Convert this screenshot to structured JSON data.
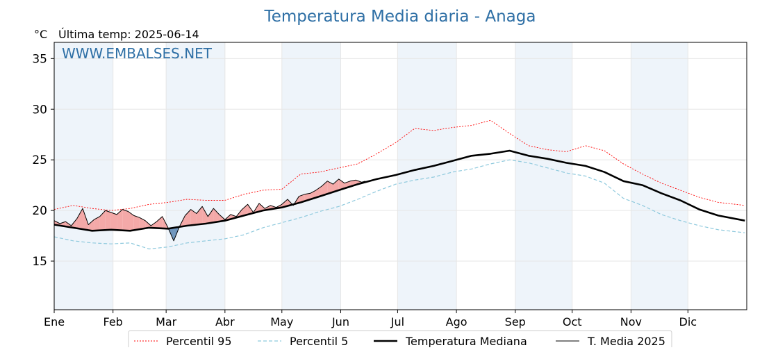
{
  "chart_data": {
    "type": "line",
    "title": "Temperatura Media diaria - Anaga",
    "unit_label": "°C",
    "last_temp_label": "Última temp: 2025-06-14",
    "watermark": "WWW.EMBALSES.NET",
    "xlabel": "",
    "ylabel": "",
    "ylim": [
      10.2,
      36.6
    ],
    "y_ticks": [
      15,
      20,
      25,
      30,
      35
    ],
    "x_range_days": [
      0,
      365
    ],
    "month_ticks": [
      {
        "label": "Ene",
        "day": 0
      },
      {
        "label": "Feb",
        "day": 31
      },
      {
        "label": "Mar",
        "day": 59
      },
      {
        "label": "Abr",
        "day": 90
      },
      {
        "label": "May",
        "day": 120
      },
      {
        "label": "Jun",
        "day": 151
      },
      {
        "label": "Jul",
        "day": 181
      },
      {
        "label": "Ago",
        "day": 212
      },
      {
        "label": "Sep",
        "day": 243
      },
      {
        "label": "Oct",
        "day": 273
      },
      {
        "label": "Nov",
        "day": 304
      },
      {
        "label": "Dic",
        "day": 334
      }
    ],
    "shaded_months": [
      "Ene",
      "Mar",
      "May",
      "Jul",
      "Sep",
      "Nov"
    ],
    "grid": true,
    "legend_position": "bottom-center",
    "colors": {
      "title": "#2e6fa5",
      "watermark": "#2e6fa5",
      "p95": "#ff0000",
      "p5": "#8ec9dd",
      "median": "#000000",
      "current": "#000000",
      "above_fill": "#f4a9a8",
      "below_fill": "#6f96bd",
      "band_fill": "#eef4fa"
    },
    "series": [
      {
        "name": "Percentil 95",
        "key": "p95",
        "style": "dotted-red",
        "x": [
          0,
          10,
          20,
          30,
          40,
          50,
          60,
          70,
          80,
          90,
          100,
          110,
          120,
          130,
          140,
          150,
          160,
          170,
          180,
          190,
          200,
          210,
          220,
          230,
          240,
          250,
          260,
          270,
          280,
          290,
          300,
          310,
          320,
          330,
          340,
          350,
          364
        ],
        "values": [
          20.1,
          20.5,
          20.2,
          20.0,
          20.2,
          20.6,
          20.8,
          21.1,
          21.0,
          21.0,
          21.6,
          22.0,
          22.1,
          23.6,
          23.8,
          24.2,
          24.6,
          25.6,
          26.7,
          28.1,
          27.9,
          28.2,
          28.4,
          28.9,
          27.6,
          26.4,
          26.0,
          25.8,
          26.4,
          25.9,
          24.6,
          23.6,
          22.7,
          22.0,
          21.3,
          20.8,
          20.5
        ]
      },
      {
        "name": "Percentil 5",
        "key": "p5",
        "style": "dashed-lightblue",
        "x": [
          0,
          10,
          20,
          30,
          40,
          50,
          60,
          70,
          80,
          90,
          100,
          110,
          120,
          130,
          140,
          150,
          160,
          170,
          180,
          190,
          200,
          210,
          220,
          230,
          240,
          250,
          260,
          270,
          280,
          290,
          300,
          310,
          320,
          330,
          340,
          350,
          364
        ],
        "values": [
          17.4,
          17.0,
          16.8,
          16.7,
          16.8,
          16.2,
          16.4,
          16.8,
          17.0,
          17.2,
          17.6,
          18.3,
          18.8,
          19.3,
          19.9,
          20.4,
          21.1,
          21.9,
          22.6,
          23.0,
          23.3,
          23.8,
          24.1,
          24.6,
          25.0,
          24.7,
          24.2,
          23.7,
          23.4,
          22.7,
          21.2,
          20.5,
          19.6,
          19.0,
          18.5,
          18.1,
          17.8
        ]
      },
      {
        "name": "Temperatura Mediana",
        "key": "median",
        "style": "thick-black",
        "x": [
          0,
          10,
          20,
          30,
          40,
          50,
          60,
          70,
          80,
          90,
          100,
          110,
          120,
          130,
          140,
          150,
          160,
          170,
          180,
          190,
          200,
          210,
          220,
          230,
          240,
          250,
          260,
          270,
          280,
          290,
          300,
          310,
          320,
          330,
          340,
          350,
          364
        ],
        "values": [
          18.6,
          18.3,
          18.0,
          18.1,
          18.0,
          18.3,
          18.2,
          18.5,
          18.7,
          19.0,
          19.5,
          20.0,
          20.3,
          20.8,
          21.4,
          22.0,
          22.6,
          23.1,
          23.5,
          24.0,
          24.4,
          24.9,
          25.4,
          25.6,
          25.9,
          25.4,
          25.1,
          24.7,
          24.4,
          23.8,
          22.9,
          22.5,
          21.7,
          21.0,
          20.1,
          19.5,
          19.0
        ]
      },
      {
        "name": "T. Media 2025",
        "key": "current",
        "style": "thin-black",
        "x": [
          0,
          3,
          6,
          9,
          12,
          15,
          18,
          21,
          24,
          27,
          30,
          33,
          36,
          39,
          42,
          45,
          48,
          51,
          54,
          57,
          60,
          63,
          66,
          69,
          72,
          75,
          78,
          81,
          84,
          87,
          90,
          93,
          96,
          99,
          102,
          105,
          108,
          111,
          114,
          117,
          120,
          123,
          126,
          129,
          132,
          135,
          138,
          141,
          144,
          147,
          150,
          153,
          156,
          159,
          162,
          164
        ],
        "values": [
          19.0,
          18.7,
          18.9,
          18.5,
          19.2,
          20.2,
          18.6,
          19.1,
          19.4,
          20.0,
          19.8,
          19.6,
          20.1,
          19.9,
          19.5,
          19.3,
          19.0,
          18.5,
          18.9,
          19.4,
          18.3,
          17.0,
          18.4,
          19.5,
          20.1,
          19.7,
          20.4,
          19.4,
          20.2,
          19.6,
          19.1,
          19.6,
          19.4,
          20.1,
          20.6,
          19.8,
          20.7,
          20.2,
          20.5,
          20.3,
          20.6,
          21.1,
          20.5,
          21.4,
          21.6,
          21.7,
          22.0,
          22.4,
          22.9,
          22.6,
          23.1,
          22.7,
          22.9,
          23.0,
          22.8,
          22.9
        ]
      }
    ]
  }
}
